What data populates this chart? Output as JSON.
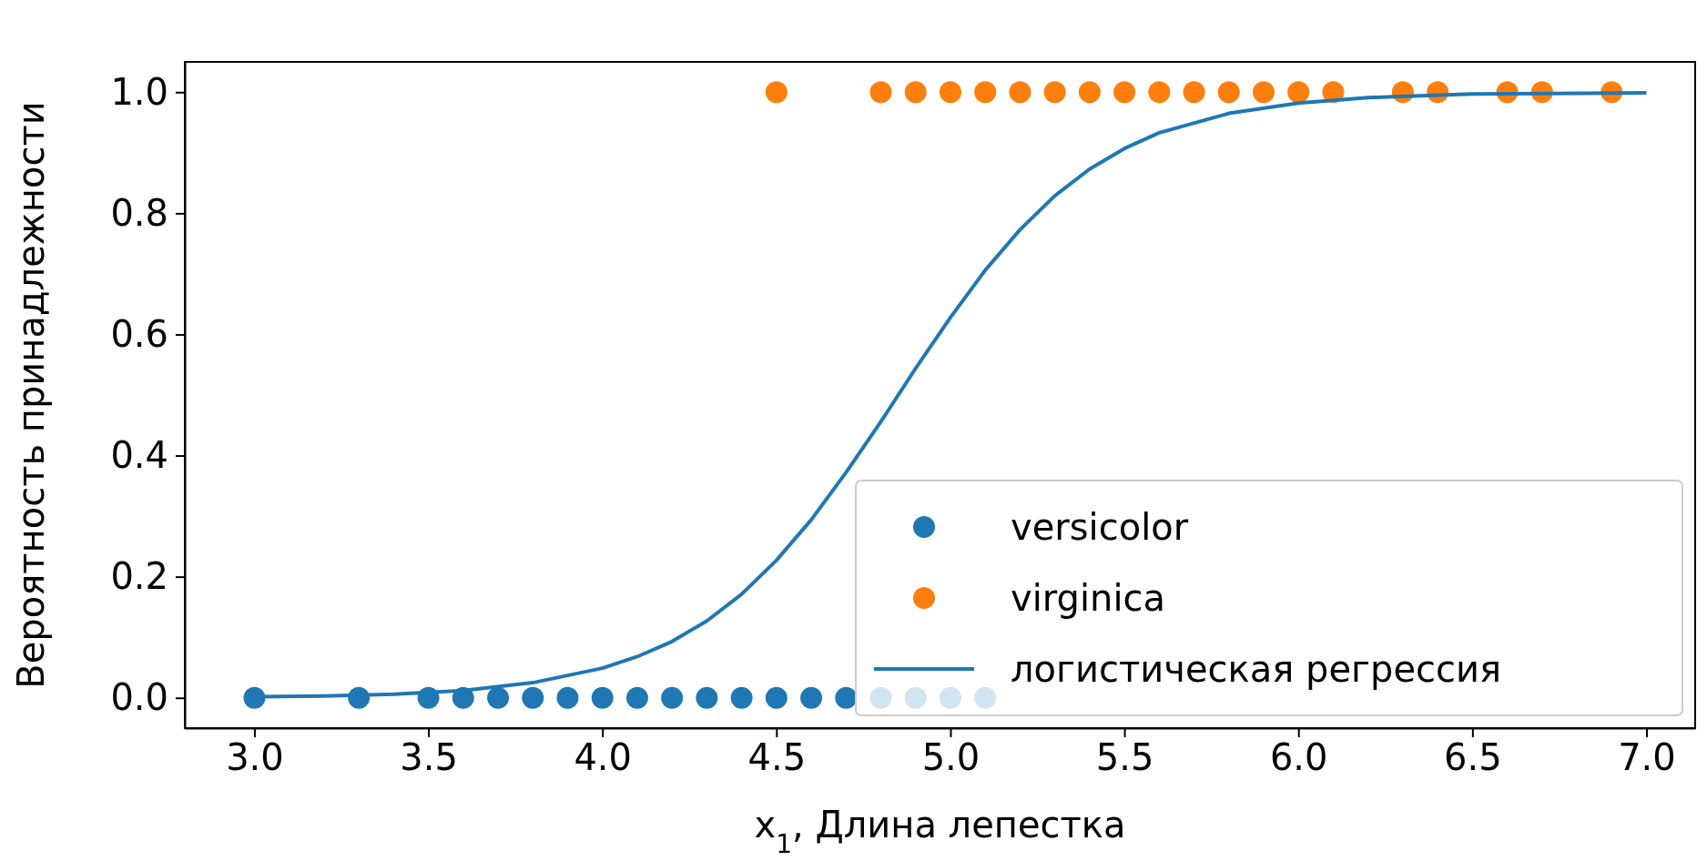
{
  "chart_data": {
    "type": "scatter",
    "xlabel": "x$_{1}$, Длина лепестка",
    "ylabel": "Вероятность принадлежности",
    "xlim": [
      2.8,
      7.14
    ],
    "ylim": [
      -0.05,
      1.05
    ],
    "xticks": [
      {
        "value": 3,
        "label": "3.0"
      },
      3.5,
      {
        "value": 4,
        "label": "4.0"
      },
      4.5,
      {
        "value": 5,
        "label": "5.0"
      },
      5.5,
      {
        "value": 6,
        "label": "6.0"
      },
      6.5,
      {
        "value": 7,
        "label": "7.0"
      }
    ],
    "yticks": [
      {
        "value": 0,
        "label": "0.0"
      },
      0.2,
      0.4,
      0.6,
      0.8,
      {
        "value": 1,
        "label": "1.0"
      }
    ],
    "legend": "bottom right",
    "grid": false,
    "series": [
      {
        "name": "versicolor",
        "color": "#1f77b4",
        "marker": "circle",
        "x": [
          3.0,
          3.3,
          3.5,
          3.6,
          3.7,
          3.8,
          3.9,
          4.0,
          4.1,
          4.2,
          4.3,
          4.4,
          4.5,
          4.6,
          4.7,
          4.8,
          4.9,
          5.0,
          5.1
        ],
        "values": [
          0,
          0,
          0,
          0,
          0,
          0,
          0,
          0,
          0,
          0,
          0,
          0,
          0,
          0,
          0,
          0,
          0,
          0,
          0
        ]
      },
      {
        "name": "virginica",
        "color": "#ff7f0e",
        "marker": "circle",
        "x": [
          4.5,
          4.8,
          4.9,
          5.0,
          5.1,
          5.2,
          5.3,
          5.4,
          5.5,
          5.6,
          5.7,
          5.8,
          5.9,
          6.0,
          6.1,
          6.3,
          6.4,
          6.6,
          6.7,
          6.9
        ],
        "values": [
          1,
          1,
          1,
          1,
          1,
          1,
          1,
          1,
          1,
          1,
          1,
          1,
          1,
          1,
          1,
          1,
          1,
          1,
          1,
          1
        ]
      },
      {
        "name": "логистическая регрессия",
        "color": "#1f77b4",
        "type": "line",
        "x": [
          3.0,
          3.2,
          3.4,
          3.6,
          3.8,
          4.0,
          4.1,
          4.2,
          4.3,
          4.4,
          4.5,
          4.6,
          4.7,
          4.8,
          4.9,
          5.0,
          5.1,
          5.2,
          5.3,
          5.4,
          5.5,
          5.6,
          5.8,
          6.0,
          6.2,
          6.5,
          7.0
        ],
        "values": [
          0.002,
          0.003,
          0.006,
          0.012,
          0.025,
          0.049,
          0.068,
          0.093,
          0.127,
          0.171,
          0.227,
          0.294,
          0.372,
          0.456,
          0.544,
          0.628,
          0.706,
          0.773,
          0.829,
          0.873,
          0.907,
          0.933,
          0.965,
          0.982,
          0.991,
          0.997,
          0.999
        ]
      }
    ]
  }
}
